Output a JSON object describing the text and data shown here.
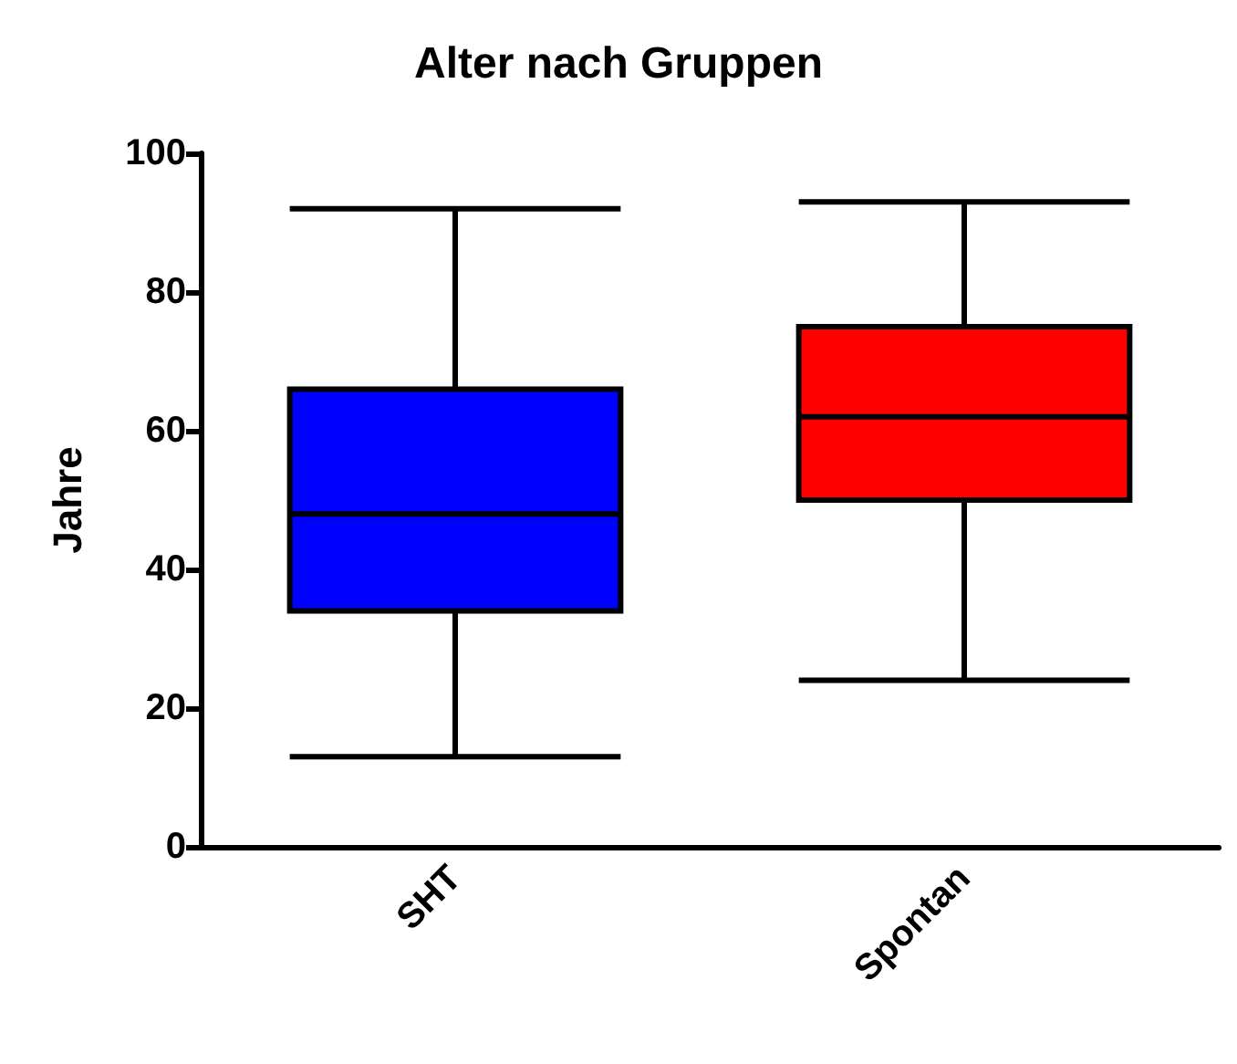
{
  "chart_data": {
    "type": "box",
    "title": "Alter nach Gruppen",
    "ylabel": "Jahre",
    "categories": [
      "SHT",
      "Spontan"
    ],
    "boxes": [
      {
        "low": 13,
        "q1": 34,
        "median": 48,
        "q3": 66,
        "high": 92
      },
      {
        "low": 24,
        "q1": 50,
        "median": 62,
        "q3": 75,
        "high": 93
      }
    ],
    "colors": [
      "#0000ff",
      "#ff0000"
    ],
    "ylim": [
      0,
      100
    ],
    "yticks": [
      0,
      20,
      40,
      60,
      80,
      100
    ],
    "grid": false
  }
}
